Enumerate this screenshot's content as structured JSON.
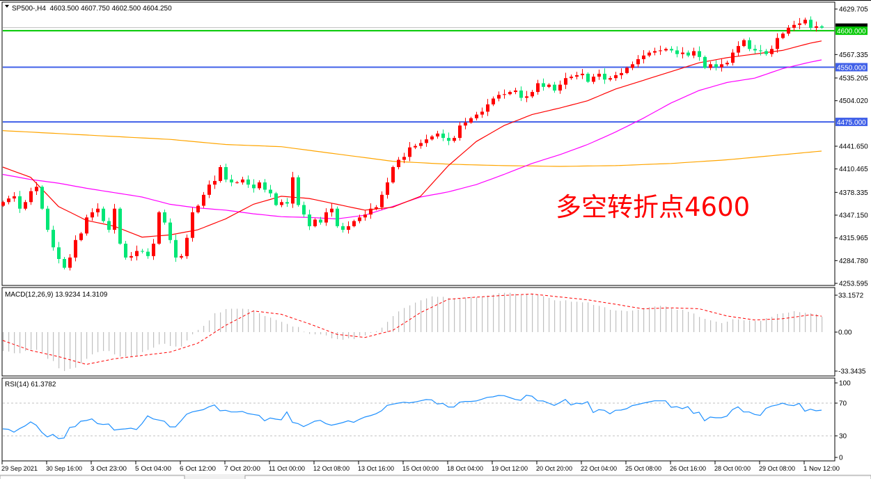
{
  "header": {
    "collapse_icon": "triangle-down-icon",
    "title": "SP500-,H4  4603.500 4607.750 4602.500 4604.250"
  },
  "chart_data": {
    "type": "candlestick",
    "ylim": [
      4253.595,
      4629.705
    ],
    "y_ticks": [
      "4629.705",
      "4567.335",
      "4535.205",
      "4504.020",
      "4441.650",
      "4410.465",
      "4378.335",
      "4347.150",
      "4315.965",
      "4284.780",
      "4253.595"
    ],
    "x_tick_labels": [
      "29 Sep 2021",
      "30 Sep 16:00",
      "3 Oct 23:00",
      "5 Oct 04:00",
      "6 Oct 12:00",
      "7 Oct 20:00",
      "11 Oct 00:00",
      "12 Oct 08:00",
      "13 Oct 16:00",
      "15 Oct 00:00",
      "18 Oct 04:00",
      "19 Oct 12:00",
      "20 Oct 20:00",
      "22 Oct 04:00",
      "25 Oct 08:00",
      "26 Oct 16:00",
      "28 Oct 00:00",
      "29 Oct 08:00",
      "1 Nov 12:00"
    ],
    "colors": {
      "up": "#ff0000",
      "down": "#00e676",
      "bid_line": "#c0c0c0"
    },
    "first_open": 4360,
    "close": [
      4365,
      4370,
      4373,
      4356,
      4365,
      4380,
      4386,
      4356,
      4327,
      4303,
      4287,
      4275,
      4289,
      4313,
      4322,
      4344,
      4351,
      4356,
      4339,
      4327,
      4356,
      4308,
      4289,
      4291,
      4298,
      4297,
      4291,
      4308,
      4351,
      4337,
      4313,
      4289,
      4291,
      4316,
      4351,
      4360,
      4375,
      4389,
      4394,
      4413,
      4396,
      4392,
      4392,
      4396,
      4389,
      4384,
      4392,
      4382,
      4377,
      4361,
      4365,
      4363,
      4399,
      4361,
      4348,
      4332,
      4341,
      4337,
      4351,
      4356,
      4332,
      4327,
      4332,
      4339,
      4344,
      4348,
      4356,
      4358,
      4375,
      4392,
      4413,
      4423,
      4427,
      4440,
      4442,
      4446,
      4451,
      4455,
      4459,
      4453,
      4449,
      4453,
      4470,
      4474,
      4480,
      4485,
      4489,
      4499,
      4507,
      4512,
      4513,
      4516,
      4518,
      4508,
      4510,
      4516,
      4528,
      4523,
      4526,
      4518,
      4526,
      4535,
      4537,
      4539,
      4541,
      4530,
      4537,
      4541,
      4533,
      4535,
      4539,
      4542,
      4549,
      4554,
      4561,
      4566,
      4570,
      4572,
      4573,
      4575,
      4573,
      4568,
      4570,
      4566,
      4572,
      4564,
      4549,
      4554,
      4550,
      4554,
      4556,
      4570,
      4579,
      4587,
      4575,
      4573,
      4572,
      4568,
      4575,
      4590,
      4596,
      4604,
      4608,
      4610,
      4615,
      4604,
      4606,
      4604.25
    ],
    "bid": 4604.25,
    "moving_averages": [
      {
        "color": "#ffa500",
        "points": [
          [
            0,
            4463
          ],
          [
            10,
            4459
          ],
          [
            20,
            4455
          ],
          [
            30,
            4451
          ],
          [
            40,
            4444
          ],
          [
            50,
            4441
          ],
          [
            60,
            4431
          ],
          [
            70,
            4421
          ],
          [
            80,
            4417
          ],
          [
            90,
            4415
          ],
          [
            100,
            4414
          ],
          [
            110,
            4415
          ],
          [
            120,
            4418
          ],
          [
            130,
            4423
          ],
          [
            140,
            4430
          ],
          [
            147,
            4435
          ]
        ]
      },
      {
        "color": "#ff00ff",
        "points": [
          [
            0,
            4403
          ],
          [
            5,
            4396
          ],
          [
            10,
            4391
          ],
          [
            15,
            4384
          ],
          [
            20,
            4378
          ],
          [
            25,
            4372
          ],
          [
            30,
            4362
          ],
          [
            35,
            4357
          ],
          [
            40,
            4354
          ],
          [
            45,
            4349
          ],
          [
            50,
            4345
          ],
          [
            55,
            4344
          ],
          [
            60,
            4342
          ],
          [
            65,
            4347
          ],
          [
            70,
            4359
          ],
          [
            75,
            4372
          ],
          [
            80,
            4379
          ],
          [
            85,
            4389
          ],
          [
            90,
            4403
          ],
          [
            95,
            4418
          ],
          [
            100,
            4430
          ],
          [
            105,
            4444
          ],
          [
            110,
            4461
          ],
          [
            115,
            4480
          ],
          [
            120,
            4501
          ],
          [
            125,
            4518
          ],
          [
            130,
            4529
          ],
          [
            135,
            4535
          ],
          [
            140,
            4548
          ],
          [
            145,
            4557
          ],
          [
            147,
            4560
          ]
        ]
      },
      {
        "color": "#ff0000",
        "points": [
          [
            0,
            4413
          ],
          [
            5,
            4399
          ],
          [
            10,
            4359
          ],
          [
            15,
            4340
          ],
          [
            20,
            4332
          ],
          [
            25,
            4317
          ],
          [
            30,
            4320
          ],
          [
            35,
            4327
          ],
          [
            40,
            4342
          ],
          [
            45,
            4362
          ],
          [
            50,
            4373
          ],
          [
            55,
            4370
          ],
          [
            60,
            4362
          ],
          [
            65,
            4354
          ],
          [
            70,
            4358
          ],
          [
            75,
            4373
          ],
          [
            80,
            4415
          ],
          [
            85,
            4448
          ],
          [
            90,
            4470
          ],
          [
            95,
            4485
          ],
          [
            100,
            4494
          ],
          [
            105,
            4504
          ],
          [
            110,
            4520
          ],
          [
            115,
            4532
          ],
          [
            120,
            4544
          ],
          [
            125,
            4556
          ],
          [
            130,
            4563
          ],
          [
            135,
            4568
          ],
          [
            140,
            4573
          ],
          [
            145,
            4583
          ],
          [
            147,
            4586
          ]
        ]
      }
    ],
    "horizontal_levels": [
      {
        "value": 4600,
        "label": "4600.000",
        "color": "#00c800"
      },
      {
        "value": 4550,
        "label": "4550.000",
        "color": "#4060e8"
      },
      {
        "value": 4475,
        "label": "4475.000",
        "color": "#4060e8"
      }
    ],
    "annotation": "多空转折点4600",
    "macd": {
      "label": "MACD(12,26,9) 13.9234 14.3109",
      "ylim": [
        -33.3435,
        33.1572
      ],
      "y_ticks": [
        "33.1572",
        "0.00",
        "-33.3435"
      ],
      "histogram_color": "#c0c0c0",
      "signal_color": "#ff0000",
      "histogram": [
        -17,
        -17.5,
        -19,
        -19,
        -17,
        -16,
        -16,
        -18,
        -24,
        -26,
        -32.5,
        -35,
        -33,
        -32,
        -28,
        -24,
        -20,
        -18,
        -17,
        -17,
        -20,
        -22,
        -22,
        -22,
        -21,
        -18,
        -16,
        -14,
        -11,
        -10.5,
        -12.5,
        -13,
        -13,
        -7.5,
        -2,
        2,
        5.6,
        10.5,
        17,
        17.7,
        20.7,
        21,
        21,
        21,
        20.7,
        19.2,
        17,
        14.4,
        13,
        10.9,
        9.2,
        7.3,
        5,
        4.6,
        0.4,
        -1.7,
        -2,
        -2,
        -3,
        -5.6,
        -6.3,
        -6.9,
        -5.6,
        -6.3,
        -3.3,
        -3,
        -0.6,
        0.8,
        4,
        9.2,
        14.4,
        18.6,
        21.7,
        24,
        26.5,
        28.6,
        30.3,
        32.1,
        31.7,
        31.7,
        30.7,
        30.3,
        30.3,
        31.1,
        31.7,
        31.3,
        31.7,
        32.8,
        33.6,
        34.9,
        35.3,
        35.3,
        34.4,
        33.2,
        33.8,
        34.2,
        33.2,
        32.3,
        30.7,
        28.6,
        28,
        28.6,
        27.3,
        27.3,
        26.7,
        26.7,
        24.4,
        23.6,
        22.3,
        20,
        19.4,
        19.4,
        18.8,
        19.4,
        20.2,
        21.7,
        22.3,
        23,
        23.6,
        23,
        21.3,
        20,
        20,
        18.2,
        16.7,
        13.6,
        11.9,
        10.6,
        9.4,
        8.1,
        9.4,
        11.5,
        11.5,
        10.6,
        10.6,
        10,
        10,
        12.5,
        13.8,
        16.3,
        16.9,
        17.5,
        18.8,
        17.9,
        17.3,
        16.9,
        16.3,
        13.92
      ],
      "signal": [
        [
          0,
          -7.5
        ],
        [
          5,
          -16.5
        ],
        [
          10,
          -22
        ],
        [
          15,
          -29
        ],
        [
          20,
          -24
        ],
        [
          25,
          -21
        ],
        [
          30,
          -18
        ],
        [
          35,
          -10
        ],
        [
          40,
          6
        ],
        [
          45,
          19
        ],
        [
          50,
          16
        ],
        [
          55,
          7.5
        ],
        [
          60,
          -2
        ],
        [
          65,
          -4.8
        ],
        [
          70,
          1.5
        ],
        [
          75,
          17.5
        ],
        [
          80,
          29.5
        ],
        [
          85,
          31.4
        ],
        [
          90,
          33
        ],
        [
          95,
          34.2
        ],
        [
          100,
          31.6
        ],
        [
          105,
          29
        ],
        [
          110,
          25
        ],
        [
          115,
          20.9
        ],
        [
          120,
          21.8
        ],
        [
          125,
          21
        ],
        [
          130,
          14.5
        ],
        [
          135,
          10.9
        ],
        [
          140,
          12
        ],
        [
          145,
          15.5
        ],
        [
          147,
          14.31
        ]
      ]
    },
    "rsi": {
      "label": "RSI(14) 61.3782",
      "ylim": [
        0,
        100
      ],
      "levels": [
        70,
        30
      ],
      "y_ticks": [
        "100",
        "70",
        "30",
        "0"
      ],
      "color": "#1e90ff",
      "values": [
        38.5,
        38,
        34.5,
        38.8,
        42.2,
        47,
        43,
        34.3,
        28.6,
        31.7,
        26.6,
        27.4,
        40.2,
        41.3,
        47.9,
        48.7,
        50.7,
        45,
        43.9,
        44.5,
        37.1,
        38,
        38.5,
        39.4,
        37.7,
        45,
        54.4,
        50.7,
        49.3,
        47.9,
        41,
        41,
        48.4,
        56.4,
        59.2,
        60.6,
        62,
        65.5,
        67.7,
        60.6,
        61.2,
        59.2,
        59.2,
        59.8,
        57.2,
        56.1,
        55,
        48.4,
        51.8,
        50.4,
        49.6,
        59.2,
        46.5,
        45,
        41.3,
        44.5,
        47.9,
        49,
        45,
        43,
        44.5,
        46.2,
        48.4,
        46.5,
        50.1,
        53,
        54.7,
        57,
        60.6,
        67.2,
        68.6,
        70,
        71.1,
        70.3,
        71.4,
        72.8,
        74.3,
        74,
        68.9,
        69.7,
        65.2,
        65.2,
        71.1,
        72,
        72,
        72.6,
        74.8,
        77.1,
        77.7,
        79.4,
        79.1,
        76.8,
        74.5,
        73.4,
        79.6,
        78.5,
        72.8,
        72.6,
        70,
        67.2,
        70.6,
        74.5,
        67.7,
        70,
        69.1,
        71.7,
        58.4,
        62,
        61.2,
        56.9,
        61.2,
        61.5,
        63.2,
        66.9,
        68.3,
        70,
        71.4,
        72.8,
        72.8,
        72.8,
        64.9,
        65.7,
        63.2,
        65.7,
        57.5,
        58.9,
        48.4,
        53,
        52.1,
        52.1,
        54.1,
        62,
        65.5,
        59.2,
        59.2,
        56.1,
        55,
        63.5,
        66.3,
        67.7,
        70,
        67.7,
        66.9,
        69.7,
        60.1,
        62.6,
        60.6,
        61.3782
      ]
    }
  }
}
